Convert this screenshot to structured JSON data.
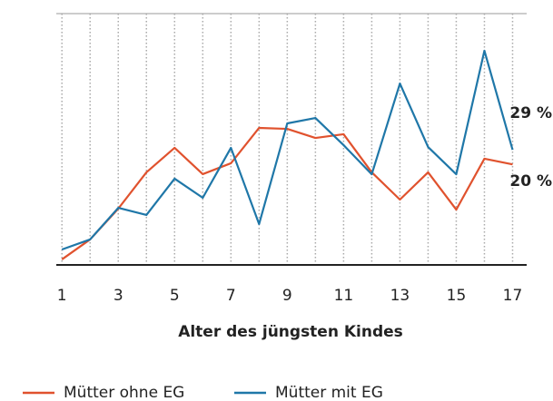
{
  "chart_data": {
    "type": "line",
    "xlabel": "Alter des jüngsten Kindes",
    "x": [
      1,
      2,
      3,
      4,
      5,
      6,
      7,
      8,
      9,
      10,
      11,
      12,
      13,
      14,
      15,
      16,
      17
    ],
    "series": [
      {
        "name": "Mütter ohne EG",
        "color": "#e0522e",
        "values": [
          -38.6,
          -26.3,
          -7.3,
          15.1,
          30.2,
          14.0,
          20.7,
          42.5,
          41.9,
          36.3,
          38.6,
          15.1,
          -1.7,
          15.1,
          -7.9,
          23.5,
          20
        ],
        "value_labels": [
          null,
          null,
          null,
          null,
          null,
          null,
          null,
          null,
          null,
          null,
          null,
          null,
          null,
          null,
          null,
          null,
          "20 %"
        ]
      },
      {
        "name": "Mütter mit EG",
        "color": "#1f77a8",
        "values": [
          -32.5,
          -26.3,
          -6.8,
          -11.2,
          11.2,
          -0.6,
          30.2,
          -16.8,
          45.3,
          48.6,
          31.9,
          13.9,
          69.9,
          30.7,
          13.9,
          90.1,
          29
        ],
        "value_labels": [
          null,
          null,
          null,
          null,
          null,
          null,
          null,
          null,
          null,
          null,
          null,
          null,
          null,
          null,
          null,
          null,
          "29 %"
        ]
      }
    ],
    "xlim": [
      0.8,
      17.5
    ],
    "xticks": [
      1,
      3,
      5,
      7,
      9,
      11,
      13,
      15,
      17
    ],
    "ylim": [
      -42,
      113
    ],
    "grid": true
  }
}
